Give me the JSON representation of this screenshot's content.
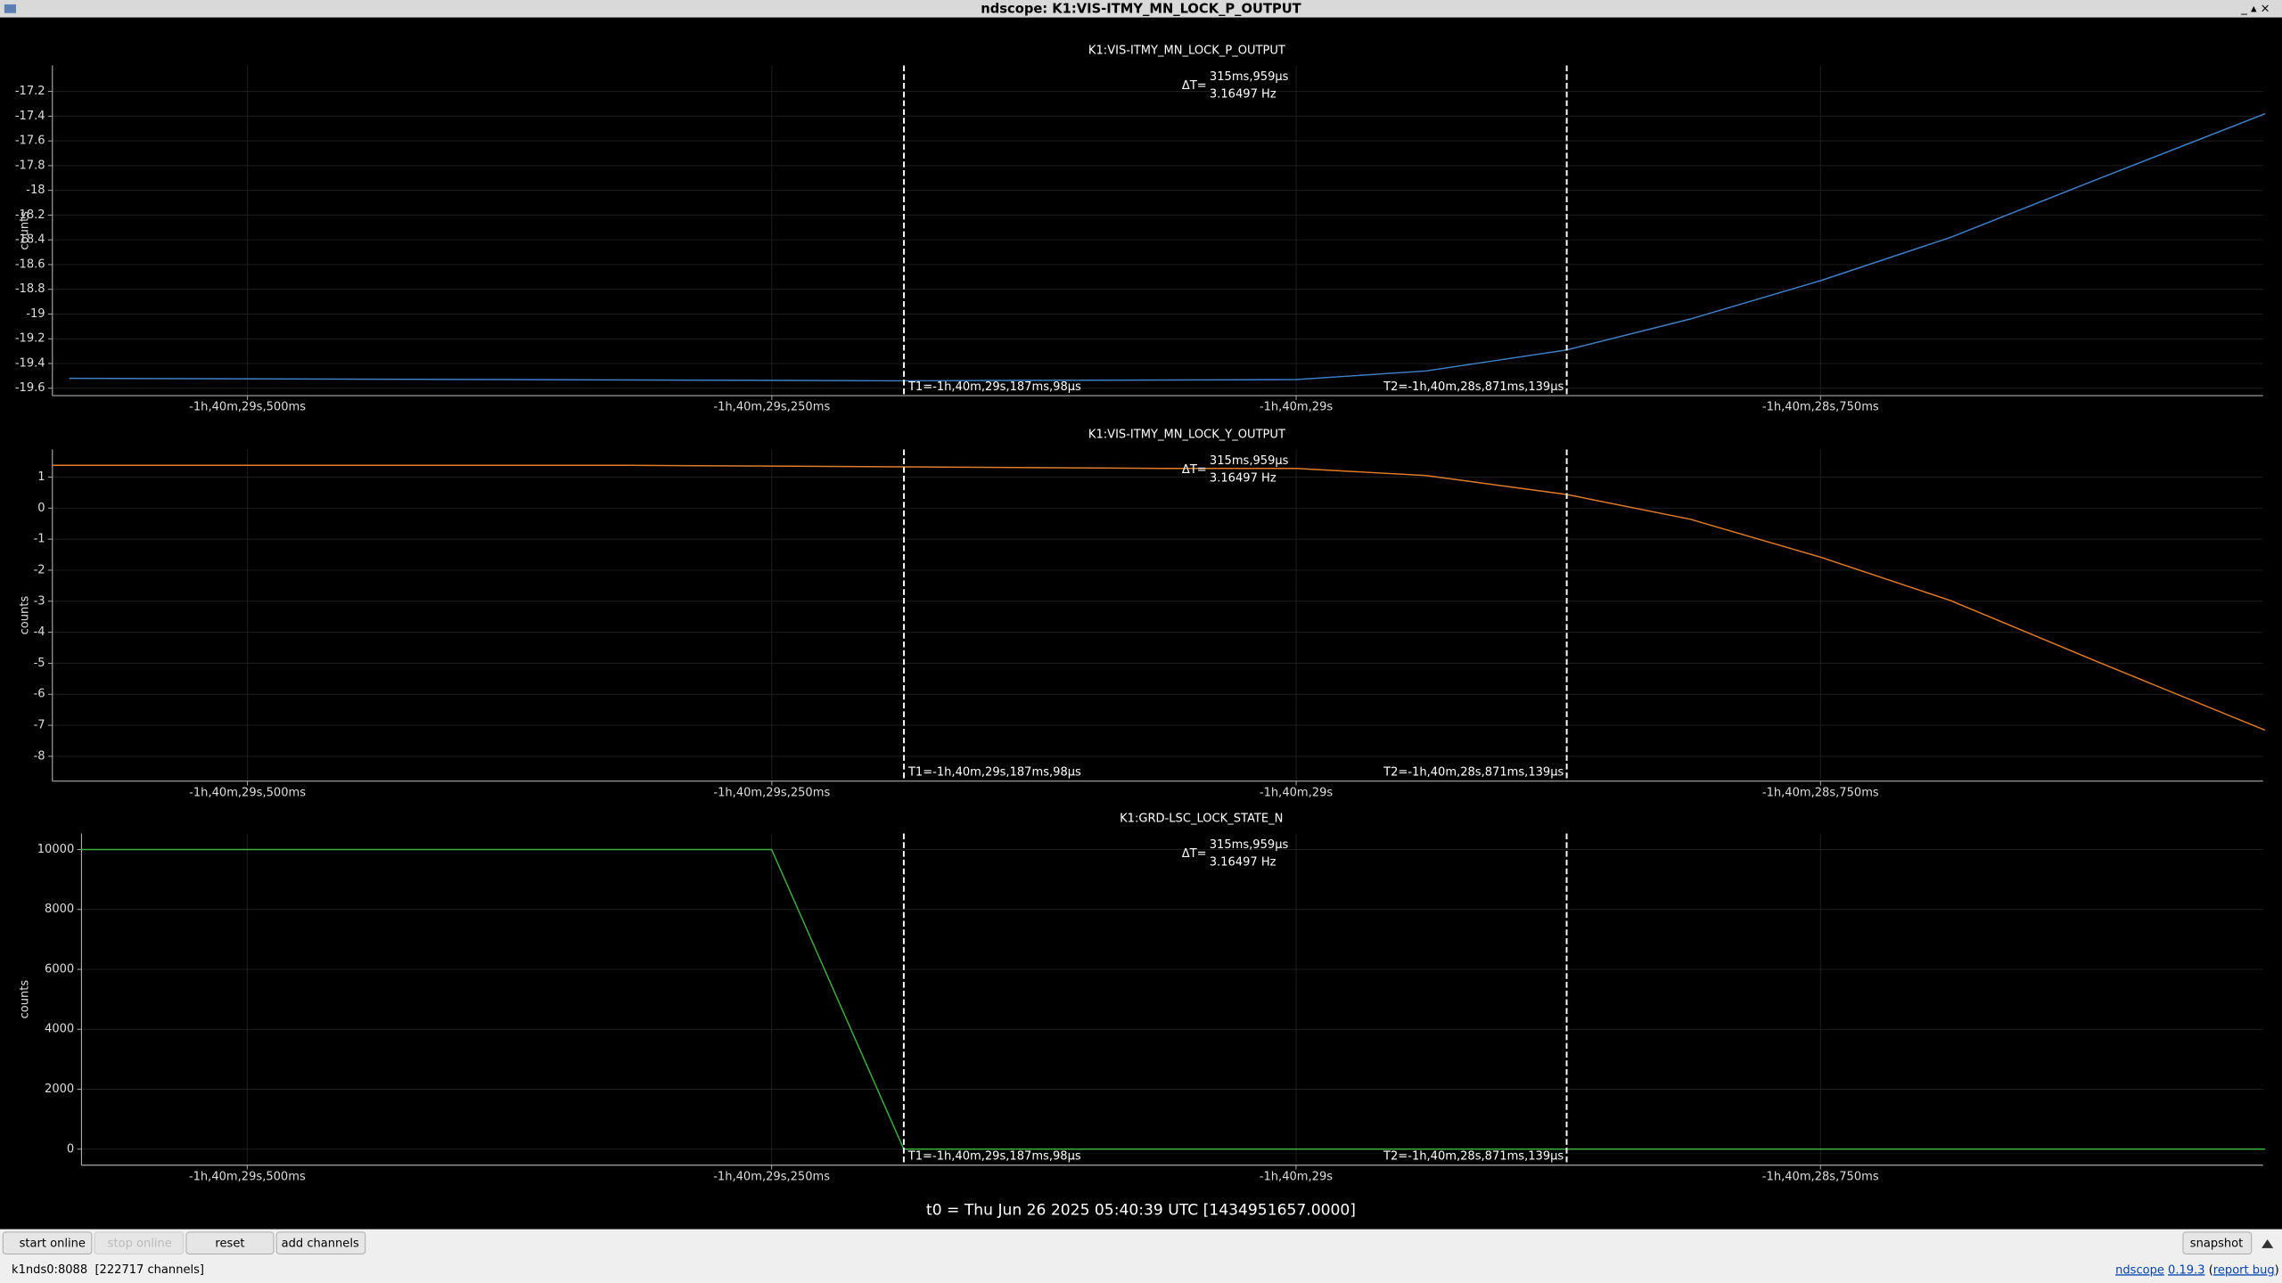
{
  "window": {
    "title": "ndscope: K1:VIS-ITMY_MN_LOCK_P_OUTPUT"
  },
  "chart_data": [
    {
      "type": "line",
      "title": "K1:VIS-ITMY_MN_LOCK_P_OUTPUT",
      "y_label": "counts",
      "x": [
        -6029.585,
        -6029.378,
        -6029.187,
        -6029.0,
        -6028.938,
        -6028.871,
        -6028.812,
        -6028.75,
        -6028.688,
        -6028.618,
        -6028.538
      ],
      "series": [
        {
          "color": "#3f7fc8",
          "values": [
            -19.52,
            -19.53,
            -19.54,
            -19.53,
            -19.46,
            -19.29,
            -19.04,
            -18.73,
            -18.38,
            -17.91,
            -17.38
          ]
        }
      ],
      "xlim": [
        -6029.593,
        -6028.539
      ],
      "xticks": [
        {
          "value": -6029.5,
          "label": "-1h,40m,29s,500ms"
        },
        {
          "value": -6029.25,
          "label": "-1h,40m,29s,250ms"
        },
        {
          "value": -6029.0,
          "label": "-1h,40m,29s"
        },
        {
          "value": -6028.75,
          "label": "-1h,40m,28s,750ms"
        }
      ],
      "ylim": [
        -19.66,
        -16.99
      ],
      "yticks": [
        -17.2,
        -17.4,
        -17.6,
        -17.8,
        -18,
        -18.2,
        -18.4,
        -18.6,
        -18.8,
        -19,
        -19.2,
        -19.4,
        -19.6
      ],
      "grid": true,
      "cursors": [
        {
          "value": -6029.187,
          "label": "T1=-1h,40m,29s,187ms,98µs"
        },
        {
          "value": -6028.871,
          "label": "T2=-1h,40m,28s,871ms,139µs"
        }
      ],
      "cursor_delta": {
        "label": "ΔT=",
        "time": "315ms,959µs",
        "freq": "3.16497 Hz"
      }
    },
    {
      "type": "line",
      "title": "K1:VIS-ITMY_MN_LOCK_Y_OUTPUT",
      "y_label": "counts",
      "x": [
        -6029.593,
        -6029.319,
        -6029.187,
        -6029.063,
        -6029.0,
        -6028.938,
        -6028.871,
        -6028.812,
        -6028.75,
        -6028.688,
        -6028.618,
        -6028.538
      ],
      "series": [
        {
          "color": "#e07b2a",
          "values": [
            1.38,
            1.38,
            1.33,
            1.28,
            1.28,
            1.05,
            0.44,
            -0.36,
            -1.58,
            -2.98,
            -4.95,
            -7.16
          ]
        }
      ],
      "xlim": [
        -6029.593,
        -6028.539
      ],
      "xticks": [
        {
          "value": -6029.5,
          "label": "-1h,40m,29s,500ms"
        },
        {
          "value": -6029.25,
          "label": "-1h,40m,29s,250ms"
        },
        {
          "value": -6029.0,
          "label": "-1h,40m,29s"
        },
        {
          "value": -6028.75,
          "label": "-1h,40m,28s,750ms"
        }
      ],
      "ylim": [
        -8.8,
        1.89
      ],
      "yticks": [
        1,
        0,
        -1,
        -2,
        -3,
        -4,
        -5,
        -6,
        -7,
        -8
      ],
      "grid": true,
      "cursors": [
        {
          "value": -6029.187,
          "label": "T1=-1h,40m,29s,187ms,98µs"
        },
        {
          "value": -6028.871,
          "label": "T2=-1h,40m,28s,871ms,139µs"
        }
      ],
      "cursor_delta": {
        "label": "ΔT=",
        "time": "315ms,959µs",
        "freq": "3.16497 Hz"
      }
    },
    {
      "type": "line",
      "title": "K1:GRD-LSC_LOCK_STATE_N",
      "y_label": "counts",
      "x": [
        -6029.579,
        -6029.25,
        -6029.187,
        -6028.538
      ],
      "series": [
        {
          "color": "#3cae3c",
          "values": [
            10000,
            10000,
            0,
            0
          ]
        }
      ],
      "xlim": [
        -6029.579,
        -6028.539
      ],
      "xticks": [
        {
          "value": -6029.5,
          "label": "-1h,40m,29s,500ms"
        },
        {
          "value": -6029.25,
          "label": "-1h,40m,29s,250ms"
        },
        {
          "value": -6029.0,
          "label": "-1h,40m,29s"
        },
        {
          "value": -6028.75,
          "label": "-1h,40m,28s,750ms"
        }
      ],
      "ylim": [
        -534,
        10534
      ],
      "yticks": [
        10000,
        8000,
        6000,
        4000,
        2000,
        0
      ],
      "grid": true,
      "cursors": [
        {
          "value": -6029.187,
          "label": "T1=-1h,40m,29s,187ms,98µs"
        },
        {
          "value": -6028.871,
          "label": "T2=-1h,40m,28s,871ms,139µs"
        }
      ],
      "cursor_delta": {
        "label": "ΔT=",
        "time": "315ms,959µs",
        "freq": "3.16497 Hz"
      }
    }
  ],
  "t0": "t0 = Thu Jun 26 2025 05:40:39 UTC [1434951657.0000]",
  "buttons": {
    "start": "start online",
    "stop": "stop online",
    "reset": "reset",
    "add": "add channels",
    "snapshot": "snapshot"
  },
  "status": {
    "server": "k1nds0:8088  [222717 channels]",
    "app": "ndscope",
    "version": "0.19.3",
    "open": "(",
    "bug": "report bug",
    "close": ")"
  }
}
